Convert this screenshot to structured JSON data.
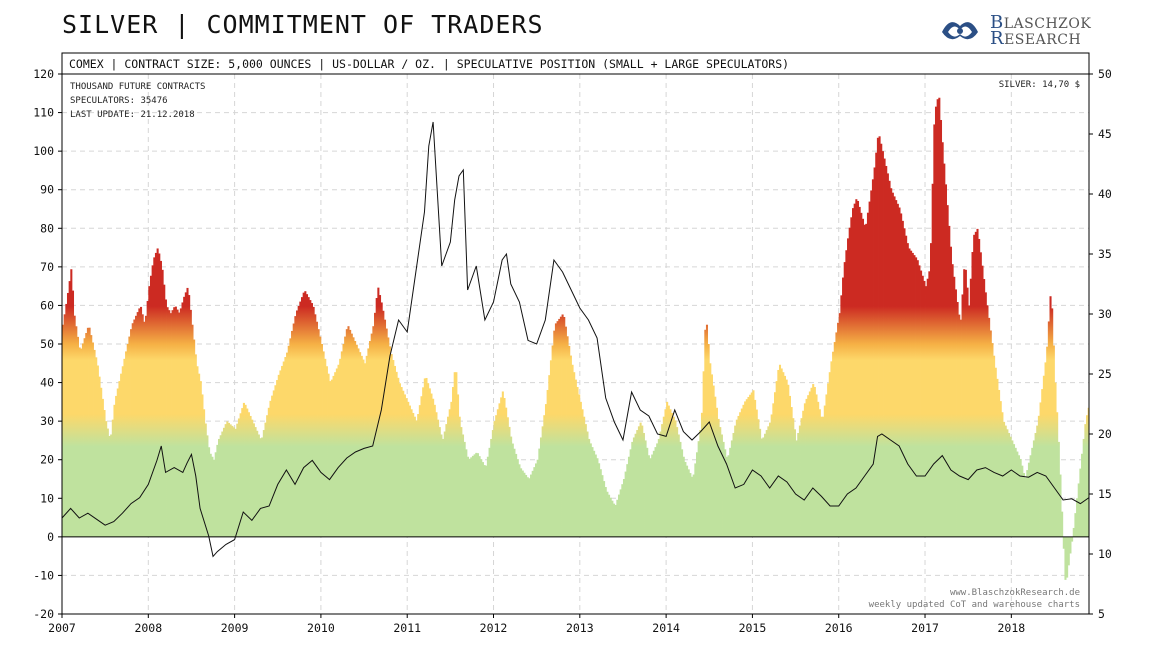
{
  "title": "SILVER | COMMITMENT OF TRADERS",
  "logo": {
    "line1_cap": "B",
    "line1_rest": "LASCHZOK",
    "line2_cap": "R",
    "line2_rest": "ESEARCH"
  },
  "header_text": "COMEX | CONTRACT SIZE: 5,000 OUNCES | US-DOLLAR / OZ. | SPECULATIVE POSITION (SMALL + LARGE SPECULATORS)",
  "info": {
    "line1": "THOUSAND FUTURE CONTRACTS",
    "line2": "SPECULATORS:  35476",
    "line3": "LAST UPDATE: 21.12.2018",
    "price": "SILVER: 14,70 $"
  },
  "footer": {
    "line1": "www.BlaschzokResearch.de",
    "line2": "weekly updated CoT and warehouse charts"
  },
  "colors": {
    "green": "#bfe29e",
    "yellow": "#fdd86a",
    "red": "#cc2a22",
    "line": "#111111",
    "grid": "#d6d6d6"
  },
  "chart_data": {
    "type": "bar",
    "x_ticks": [
      "2007",
      "2008",
      "2009",
      "2010",
      "2011",
      "2012",
      "2013",
      "2014",
      "2015",
      "2016",
      "2017",
      "2018"
    ],
    "x_range": [
      2007.0,
      2018.9
    ],
    "y_left": {
      "ticks": [
        120,
        110,
        100,
        90,
        80,
        70,
        60,
        50,
        40,
        30,
        20,
        10,
        0,
        -10,
        -20
      ],
      "range": [
        -20,
        120
      ]
    },
    "y_right": {
      "ticks": [
        50,
        45,
        40,
        35,
        30,
        25,
        20,
        15,
        10,
        5
      ],
      "range": [
        5,
        50
      ]
    },
    "grid": true,
    "series": [
      {
        "name": "SPECULATORS",
        "axis": "left",
        "points": [
          [
            2007.0,
            55
          ],
          [
            2007.05,
            62
          ],
          [
            2007.1,
            70
          ],
          [
            2007.13,
            58
          ],
          [
            2007.2,
            48
          ],
          [
            2007.3,
            55
          ],
          [
            2007.4,
            45
          ],
          [
            2007.5,
            30
          ],
          [
            2007.55,
            25
          ],
          [
            2007.6,
            35
          ],
          [
            2007.7,
            45
          ],
          [
            2007.8,
            55
          ],
          [
            2007.9,
            60
          ],
          [
            2007.95,
            55
          ],
          [
            2008.0,
            65
          ],
          [
            2008.05,
            72
          ],
          [
            2008.1,
            75
          ],
          [
            2008.15,
            70
          ],
          [
            2008.2,
            60
          ],
          [
            2008.25,
            58
          ],
          [
            2008.3,
            60
          ],
          [
            2008.35,
            58
          ],
          [
            2008.4,
            62
          ],
          [
            2008.45,
            65
          ],
          [
            2008.5,
            55
          ],
          [
            2008.55,
            45
          ],
          [
            2008.6,
            40
          ],
          [
            2008.65,
            30
          ],
          [
            2008.7,
            22
          ],
          [
            2008.75,
            20
          ],
          [
            2008.8,
            25
          ],
          [
            2008.9,
            30
          ],
          [
            2009.0,
            28
          ],
          [
            2009.1,
            35
          ],
          [
            2009.2,
            30
          ],
          [
            2009.3,
            25
          ],
          [
            2009.4,
            35
          ],
          [
            2009.5,
            42
          ],
          [
            2009.6,
            48
          ],
          [
            2009.7,
            58
          ],
          [
            2009.8,
            64
          ],
          [
            2009.9,
            60
          ],
          [
            2010.0,
            50
          ],
          [
            2010.1,
            40
          ],
          [
            2010.2,
            45
          ],
          [
            2010.3,
            55
          ],
          [
            2010.4,
            50
          ],
          [
            2010.5,
            45
          ],
          [
            2010.6,
            55
          ],
          [
            2010.65,
            65
          ],
          [
            2010.7,
            60
          ],
          [
            2010.8,
            48
          ],
          [
            2010.9,
            40
          ],
          [
            2011.0,
            35
          ],
          [
            2011.1,
            30
          ],
          [
            2011.2,
            42
          ],
          [
            2011.3,
            35
          ],
          [
            2011.4,
            25
          ],
          [
            2011.5,
            35
          ],
          [
            2011.55,
            45
          ],
          [
            2011.6,
            30
          ],
          [
            2011.7,
            20
          ],
          [
            2011.8,
            22
          ],
          [
            2011.9,
            18
          ],
          [
            2012.0,
            30
          ],
          [
            2012.1,
            38
          ],
          [
            2012.2,
            25
          ],
          [
            2012.3,
            18
          ],
          [
            2012.4,
            15
          ],
          [
            2012.5,
            20
          ],
          [
            2012.6,
            35
          ],
          [
            2012.7,
            55
          ],
          [
            2012.8,
            58
          ],
          [
            2012.9,
            45
          ],
          [
            2013.0,
            35
          ],
          [
            2013.1,
            25
          ],
          [
            2013.2,
            20
          ],
          [
            2013.3,
            12
          ],
          [
            2013.4,
            8
          ],
          [
            2013.5,
            15
          ],
          [
            2013.6,
            25
          ],
          [
            2013.7,
            30
          ],
          [
            2013.8,
            20
          ],
          [
            2013.9,
            25
          ],
          [
            2014.0,
            35
          ],
          [
            2014.1,
            30
          ],
          [
            2014.2,
            20
          ],
          [
            2014.3,
            15
          ],
          [
            2014.4,
            30
          ],
          [
            2014.45,
            58
          ],
          [
            2014.5,
            45
          ],
          [
            2014.6,
            30
          ],
          [
            2014.7,
            20
          ],
          [
            2014.8,
            30
          ],
          [
            2014.9,
            35
          ],
          [
            2015.0,
            38
          ],
          [
            2015.1,
            25
          ],
          [
            2015.2,
            30
          ],
          [
            2015.3,
            45
          ],
          [
            2015.4,
            40
          ],
          [
            2015.5,
            25
          ],
          [
            2015.6,
            35
          ],
          [
            2015.7,
            40
          ],
          [
            2015.8,
            30
          ],
          [
            2015.9,
            45
          ],
          [
            2016.0,
            58
          ],
          [
            2016.05,
            70
          ],
          [
            2016.1,
            78
          ],
          [
            2016.15,
            85
          ],
          [
            2016.2,
            88
          ],
          [
            2016.3,
            80
          ],
          [
            2016.4,
            95
          ],
          [
            2016.45,
            105
          ],
          [
            2016.5,
            100
          ],
          [
            2016.6,
            90
          ],
          [
            2016.7,
            85
          ],
          [
            2016.8,
            75
          ],
          [
            2016.9,
            72
          ],
          [
            2017.0,
            65
          ],
          [
            2017.05,
            70
          ],
          [
            2017.1,
            110
          ],
          [
            2017.15,
            115
          ],
          [
            2017.2,
            100
          ],
          [
            2017.3,
            72
          ],
          [
            2017.4,
            55
          ],
          [
            2017.45,
            72
          ],
          [
            2017.5,
            60
          ],
          [
            2017.55,
            78
          ],
          [
            2017.6,
            80
          ],
          [
            2017.7,
            62
          ],
          [
            2017.8,
            45
          ],
          [
            2017.9,
            30
          ],
          [
            2018.0,
            25
          ],
          [
            2018.1,
            20
          ],
          [
            2018.15,
            15
          ],
          [
            2018.2,
            20
          ],
          [
            2018.3,
            30
          ],
          [
            2018.4,
            48
          ],
          [
            2018.45,
            65
          ],
          [
            2018.5,
            40
          ],
          [
            2018.55,
            20
          ],
          [
            2018.6,
            -5
          ],
          [
            2018.62,
            -13
          ],
          [
            2018.65,
            -8
          ],
          [
            2018.7,
            0
          ],
          [
            2018.75,
            10
          ],
          [
            2018.8,
            20
          ],
          [
            2018.85,
            30
          ],
          [
            2018.9,
            35
          ]
        ]
      },
      {
        "name": "SILVER",
        "axis": "right",
        "points": [
          [
            2007.0,
            13.0
          ],
          [
            2007.1,
            13.8
          ],
          [
            2007.2,
            13.0
          ],
          [
            2007.3,
            13.4
          ],
          [
            2007.4,
            12.9
          ],
          [
            2007.5,
            12.4
          ],
          [
            2007.6,
            12.7
          ],
          [
            2007.7,
            13.4
          ],
          [
            2007.8,
            14.2
          ],
          [
            2007.9,
            14.7
          ],
          [
            2008.0,
            15.8
          ],
          [
            2008.1,
            17.8
          ],
          [
            2008.15,
            19.0
          ],
          [
            2008.2,
            16.8
          ],
          [
            2008.3,
            17.2
          ],
          [
            2008.4,
            16.8
          ],
          [
            2008.45,
            17.6
          ],
          [
            2008.5,
            18.3
          ],
          [
            2008.55,
            16.5
          ],
          [
            2008.6,
            13.8
          ],
          [
            2008.7,
            11.5
          ],
          [
            2008.75,
            9.8
          ],
          [
            2008.8,
            10.2
          ],
          [
            2008.9,
            10.8
          ],
          [
            2009.0,
            11.2
          ],
          [
            2009.1,
            13.5
          ],
          [
            2009.2,
            12.8
          ],
          [
            2009.3,
            13.8
          ],
          [
            2009.4,
            14.0
          ],
          [
            2009.5,
            15.8
          ],
          [
            2009.6,
            17.0
          ],
          [
            2009.7,
            15.8
          ],
          [
            2009.8,
            17.2
          ],
          [
            2009.9,
            17.8
          ],
          [
            2010.0,
            16.8
          ],
          [
            2010.1,
            16.2
          ],
          [
            2010.2,
            17.2
          ],
          [
            2010.3,
            18.0
          ],
          [
            2010.4,
            18.5
          ],
          [
            2010.5,
            18.8
          ],
          [
            2010.6,
            19.0
          ],
          [
            2010.7,
            22.0
          ],
          [
            2010.8,
            26.5
          ],
          [
            2010.9,
            29.5
          ],
          [
            2011.0,
            28.5
          ],
          [
            2011.1,
            33.5
          ],
          [
            2011.2,
            38.5
          ],
          [
            2011.25,
            44.0
          ],
          [
            2011.3,
            46.0
          ],
          [
            2011.35,
            40.0
          ],
          [
            2011.4,
            34.0
          ],
          [
            2011.45,
            35.0
          ],
          [
            2011.5,
            36.0
          ],
          [
            2011.55,
            39.5
          ],
          [
            2011.6,
            41.5
          ],
          [
            2011.65,
            42.0
          ],
          [
            2011.7,
            32.0
          ],
          [
            2011.8,
            34.0
          ],
          [
            2011.9,
            29.5
          ],
          [
            2012.0,
            31.0
          ],
          [
            2012.1,
            34.5
          ],
          [
            2012.15,
            35.0
          ],
          [
            2012.2,
            32.5
          ],
          [
            2012.3,
            31.0
          ],
          [
            2012.4,
            27.8
          ],
          [
            2012.5,
            27.5
          ],
          [
            2012.6,
            29.5
          ],
          [
            2012.7,
            34.5
          ],
          [
            2012.8,
            33.5
          ],
          [
            2012.9,
            32.0
          ],
          [
            2013.0,
            30.5
          ],
          [
            2013.1,
            29.5
          ],
          [
            2013.2,
            28.0
          ],
          [
            2013.3,
            23.0
          ],
          [
            2013.4,
            21.0
          ],
          [
            2013.5,
            19.5
          ],
          [
            2013.6,
            23.5
          ],
          [
            2013.7,
            22.0
          ],
          [
            2013.8,
            21.5
          ],
          [
            2013.9,
            20.0
          ],
          [
            2014.0,
            19.8
          ],
          [
            2014.1,
            22.0
          ],
          [
            2014.2,
            20.2
          ],
          [
            2014.3,
            19.5
          ],
          [
            2014.4,
            20.2
          ],
          [
            2014.5,
            21.0
          ],
          [
            2014.6,
            19.0
          ],
          [
            2014.7,
            17.5
          ],
          [
            2014.8,
            15.5
          ],
          [
            2014.9,
            15.8
          ],
          [
            2015.0,
            17.0
          ],
          [
            2015.1,
            16.5
          ],
          [
            2015.2,
            15.5
          ],
          [
            2015.3,
            16.5
          ],
          [
            2015.4,
            16.0
          ],
          [
            2015.5,
            15.0
          ],
          [
            2015.6,
            14.5
          ],
          [
            2015.7,
            15.5
          ],
          [
            2015.8,
            14.8
          ],
          [
            2015.9,
            14.0
          ],
          [
            2016.0,
            14.0
          ],
          [
            2016.1,
            15.0
          ],
          [
            2016.2,
            15.5
          ],
          [
            2016.3,
            16.5
          ],
          [
            2016.4,
            17.5
          ],
          [
            2016.45,
            19.8
          ],
          [
            2016.5,
            20.0
          ],
          [
            2016.6,
            19.5
          ],
          [
            2016.7,
            19.0
          ],
          [
            2016.8,
            17.5
          ],
          [
            2016.9,
            16.5
          ],
          [
            2017.0,
            16.5
          ],
          [
            2017.1,
            17.5
          ],
          [
            2017.2,
            18.2
          ],
          [
            2017.3,
            17.0
          ],
          [
            2017.4,
            16.5
          ],
          [
            2017.5,
            16.2
          ],
          [
            2017.6,
            17.0
          ],
          [
            2017.7,
            17.2
          ],
          [
            2017.8,
            16.8
          ],
          [
            2017.9,
            16.5
          ],
          [
            2018.0,
            17.0
          ],
          [
            2018.1,
            16.5
          ],
          [
            2018.2,
            16.4
          ],
          [
            2018.3,
            16.8
          ],
          [
            2018.4,
            16.5
          ],
          [
            2018.5,
            15.5
          ],
          [
            2018.6,
            14.5
          ],
          [
            2018.7,
            14.6
          ],
          [
            2018.8,
            14.2
          ],
          [
            2018.9,
            14.7
          ]
        ]
      }
    ]
  }
}
